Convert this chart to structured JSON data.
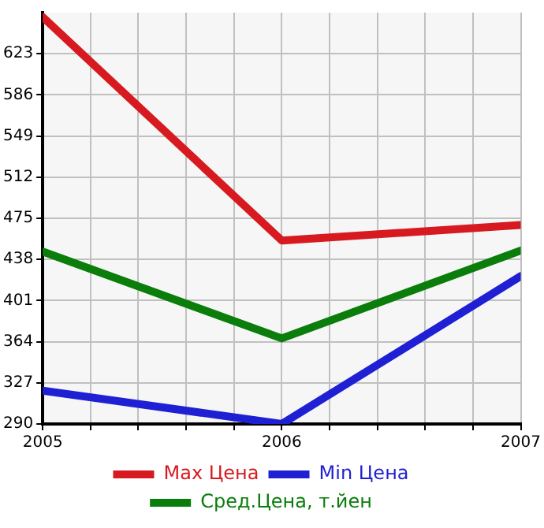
{
  "chart_data": {
    "type": "line",
    "x": [
      2005,
      2006,
      2007
    ],
    "xlim": [
      2005,
      2007
    ],
    "xticks": [
      2005,
      {
        "value": 2005.2,
        "label": null
      },
      {
        "value": 2005.4,
        "label": null
      },
      {
        "value": 2005.6,
        "label": null
      },
      {
        "value": 2005.8,
        "label": null
      },
      2006,
      {
        "value": 2006.2,
        "label": null
      },
      {
        "value": 2006.4,
        "label": null
      },
      {
        "value": 2006.6,
        "label": null
      },
      {
        "value": 2006.8,
        "label": null
      },
      2007
    ],
    "ylim": [
      290,
      660
    ],
    "yticks": [
      290,
      327,
      364,
      401,
      438,
      475,
      512,
      549,
      586,
      623
    ],
    "grid": true,
    "legend": "bottom",
    "marker": "none",
    "line_style": "solid",
    "series": [
      {
        "name": "Max Цена",
        "color": "#d71a1f",
        "values": [
          656,
          455,
          469
        ]
      },
      {
        "name": "Min Цена",
        "color": "#1f1fd4",
        "values": [
          320,
          290,
          423
        ]
      },
      {
        "name": "Сред.Цена, т.йен",
        "color": "#0a7d0a",
        "values": [
          445,
          367,
          446
        ]
      }
    ]
  }
}
